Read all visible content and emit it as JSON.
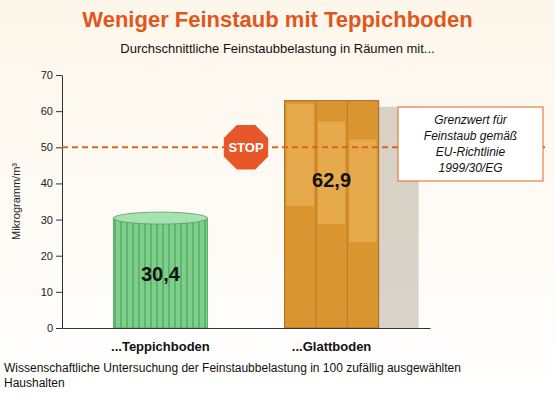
{
  "chart_data": {
    "type": "bar",
    "title": "Weniger Feinstaub mit Teppichboden",
    "subtitle": "Durchschnittliche Feinstaubbelastung in Räumen mit...",
    "y_label": "Mikrogramm/m³",
    "categories": [
      "...Teppichboden",
      "...Glattboden"
    ],
    "values": [
      30.4,
      62.9
    ],
    "value_labels": [
      "30,4",
      "62,9"
    ],
    "data_labels": true,
    "colors": [
      "#7fcf8c",
      "#d9952f"
    ],
    "ylim": [
      0,
      70
    ],
    "yticks": [
      0,
      10,
      20,
      30,
      40,
      50,
      60,
      70
    ],
    "grid": false,
    "threshold": {
      "value": 50,
      "sign": "STOP",
      "label": [
        "Grenzwert für",
        "Feinstaub gemäß",
        "EU-Richtlinie",
        "1999/30/EG"
      ]
    },
    "note": [
      "Wissenschaftliche Untersuchung der Feinstaubbelastung in 100 zufällig ausgewählten",
      "Haushalten"
    ]
  }
}
